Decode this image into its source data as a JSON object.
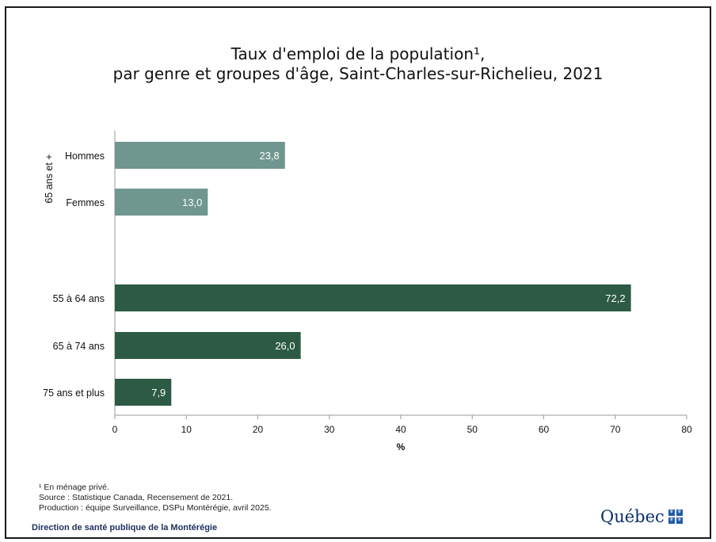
{
  "title_line1": "Taux d'emploi de la population¹,",
  "title_line2": "par genre et groupes d'âge, Saint-Charles-sur-Richelieu, 2021",
  "chart_data": {
    "type": "bar",
    "orientation": "horizontal",
    "xlabel": "%",
    "xlim": [
      0,
      80
    ],
    "xticks": [
      "0",
      "10",
      "20",
      "30",
      "40",
      "50",
      "60",
      "70",
      "80"
    ],
    "grid": false,
    "group_label": "65 ans et +",
    "bars": [
      {
        "label": "Hommes",
        "value": 23.8,
        "value_label": "23,8",
        "color": "#6f968f",
        "group": "65 ans et +"
      },
      {
        "label": "Femmes",
        "value": 13.0,
        "value_label": "13,0",
        "color": "#6f968f",
        "group": "65 ans et +"
      },
      {
        "label": "55 à 64 ans",
        "value": 72.2,
        "value_label": "72,2",
        "color": "#2d5a44"
      },
      {
        "label": "65 à 74 ans",
        "value": 26.0,
        "value_label": "26,0",
        "color": "#2d5a44"
      },
      {
        "label": "75 ans et plus",
        "value": 7.9,
        "value_label": "7,9",
        "color": "#2d5a44"
      }
    ]
  },
  "footnotes": {
    "note1": "¹ En ménage privé.",
    "source": "Source : Statistique Canada, Recensement de 2021.",
    "production": "Production : équipe Surveillance, DSPu Montérégie, avril 2025."
  },
  "direction": "Direction de santé publique de la Montérégie",
  "logo_text": "Québec",
  "logo_glyph": "⚜"
}
